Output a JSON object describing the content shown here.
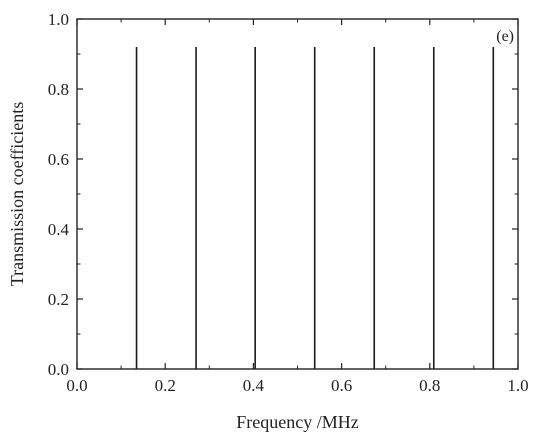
{
  "chart_data": {
    "type": "line",
    "panel_label": "(e)",
    "xlabel": "Frequency /MHz",
    "ylabel": "Transmission coefficients",
    "xlim": [
      0.0,
      1.0
    ],
    "ylim": [
      0.0,
      1.0
    ],
    "x_ticks": [
      "0.0",
      "0.2",
      "0.4",
      "0.6",
      "0.8",
      "1.0"
    ],
    "y_ticks": [
      "0.0",
      "0.2",
      "0.4",
      "0.6",
      "0.8",
      "1.0"
    ],
    "grid": false,
    "series": [
      {
        "peaks_x": [
          0.135,
          0.27,
          0.404,
          0.539,
          0.674,
          0.809,
          0.944
        ],
        "peak_y": 0.92,
        "color": "#1a1a1a"
      }
    ]
  }
}
